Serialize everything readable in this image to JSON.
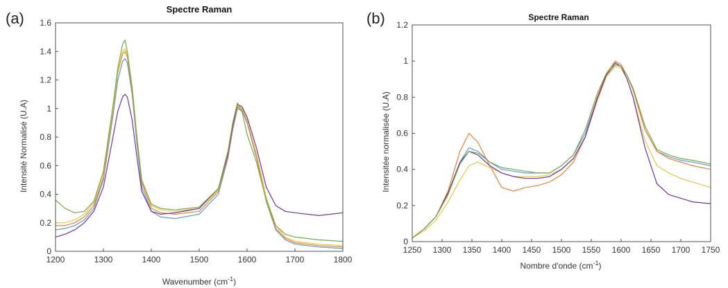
{
  "chart_data": [
    {
      "type": "line",
      "panel_label": "(a)",
      "title": "Spectre Raman",
      "xlabel": "Wavenumber (cm",
      "xlabel_sup": "-1",
      "xlabel_tail": ")",
      "ylabel": "Intensité Normalisé (U.A)",
      "xlim": [
        1200,
        1800
      ],
      "ylim": [
        0,
        1.6
      ],
      "xticks": [
        "1200",
        "1300",
        "1400",
        "1500",
        "1600",
        "1700",
        "1800"
      ],
      "yticks": [
        "0",
        "0.2",
        "0.4",
        "0.6",
        "0.8",
        "1",
        "1.2",
        "1.4",
        "1.6"
      ],
      "grid": false,
      "series": [
        {
          "color": "#5b9bd5",
          "x": [
            1200,
            1220,
            1240,
            1260,
            1280,
            1300,
            1320,
            1330,
            1340,
            1345,
            1350,
            1360,
            1370,
            1380,
            1400,
            1420,
            1450,
            1500,
            1540,
            1560,
            1570,
            1580,
            1590,
            1600,
            1620,
            1640,
            1660,
            1680,
            1700,
            1750,
            1800
          ],
          "y": [
            0.15,
            0.16,
            0.18,
            0.22,
            0.3,
            0.5,
            0.95,
            1.2,
            1.33,
            1.35,
            1.32,
            1.1,
            0.75,
            0.45,
            0.28,
            0.24,
            0.23,
            0.26,
            0.4,
            0.65,
            0.85,
            1.0,
            0.98,
            0.9,
            0.65,
            0.35,
            0.15,
            0.08,
            0.05,
            0.03,
            0.02
          ]
        },
        {
          "color": "#ed7d31",
          "x": [
            1200,
            1220,
            1240,
            1260,
            1280,
            1300,
            1320,
            1330,
            1340,
            1345,
            1350,
            1360,
            1370,
            1380,
            1400,
            1420,
            1450,
            1500,
            1540,
            1560,
            1570,
            1580,
            1590,
            1600,
            1620,
            1640,
            1660,
            1680,
            1700,
            1750,
            1800
          ],
          "y": [
            0.18,
            0.18,
            0.2,
            0.24,
            0.32,
            0.52,
            0.98,
            1.25,
            1.38,
            1.4,
            1.36,
            1.12,
            0.78,
            0.48,
            0.3,
            0.27,
            0.26,
            0.28,
            0.42,
            0.66,
            0.86,
            1.01,
            0.99,
            0.91,
            0.66,
            0.36,
            0.16,
            0.09,
            0.06,
            0.04,
            0.03
          ]
        },
        {
          "color": "#e8c547",
          "x": [
            1200,
            1220,
            1240,
            1260,
            1280,
            1300,
            1320,
            1330,
            1340,
            1345,
            1350,
            1360,
            1370,
            1380,
            1400,
            1420,
            1450,
            1500,
            1540,
            1560,
            1570,
            1580,
            1590,
            1600,
            1620,
            1640,
            1660,
            1680,
            1700,
            1750,
            1800
          ],
          "y": [
            0.2,
            0.2,
            0.22,
            0.26,
            0.34,
            0.55,
            1.0,
            1.26,
            1.4,
            1.42,
            1.38,
            1.15,
            0.8,
            0.5,
            0.32,
            0.29,
            0.28,
            0.3,
            0.43,
            0.68,
            0.88,
            1.02,
            1.0,
            0.92,
            0.68,
            0.38,
            0.18,
            0.1,
            0.07,
            0.05,
            0.04
          ]
        },
        {
          "color": "#7030a0",
          "x": [
            1200,
            1220,
            1240,
            1260,
            1280,
            1300,
            1320,
            1330,
            1340,
            1345,
            1350,
            1360,
            1370,
            1380,
            1400,
            1420,
            1450,
            1500,
            1540,
            1560,
            1570,
            1580,
            1590,
            1600,
            1620,
            1640,
            1660,
            1680,
            1700,
            1750,
            1800
          ],
          "y": [
            0.1,
            0.12,
            0.15,
            0.2,
            0.28,
            0.45,
            0.8,
            0.98,
            1.08,
            1.1,
            1.08,
            0.92,
            0.66,
            0.42,
            0.28,
            0.26,
            0.27,
            0.3,
            0.44,
            0.68,
            0.88,
            1.03,
            1.01,
            0.94,
            0.72,
            0.45,
            0.32,
            0.28,
            0.27,
            0.25,
            0.27
          ]
        },
        {
          "color": "#70ad47",
          "x": [
            1200,
            1220,
            1240,
            1260,
            1280,
            1300,
            1320,
            1330,
            1340,
            1345,
            1350,
            1360,
            1370,
            1380,
            1400,
            1420,
            1450,
            1500,
            1540,
            1560,
            1570,
            1580,
            1590,
            1600,
            1620,
            1640,
            1660,
            1680,
            1700,
            1750,
            1800
          ],
          "y": [
            0.36,
            0.3,
            0.27,
            0.28,
            0.35,
            0.56,
            1.02,
            1.28,
            1.45,
            1.48,
            1.4,
            1.15,
            0.8,
            0.5,
            0.33,
            0.3,
            0.29,
            0.31,
            0.44,
            0.7,
            0.9,
            1.04,
            0.97,
            0.82,
            0.62,
            0.36,
            0.18,
            0.12,
            0.1,
            0.08,
            0.07
          ]
        }
      ]
    },
    {
      "type": "line",
      "panel_label": "(b)",
      "title": "Spectre Raman",
      "xlabel": "Nombre d'onde (cm",
      "xlabel_sup": "-1",
      "xlabel_tail": ")",
      "ylabel": "Intensitée normalisée (U.A)",
      "xlim": [
        1250,
        1750
      ],
      "ylim": [
        0,
        1.2
      ],
      "xticks": [
        "1250",
        "1300",
        "1350",
        "1400",
        "1450",
        "1500",
        "1550",
        "1600",
        "1650",
        "1700",
        "1750"
      ],
      "yticks": [
        "0",
        "0.2",
        "0.4",
        "0.6",
        "0.8",
        "1",
        "1.2"
      ],
      "grid": false,
      "series": [
        {
          "color": "#5b9bd5",
          "x": [
            1250,
            1270,
            1290,
            1310,
            1330,
            1345,
            1360,
            1380,
            1400,
            1420,
            1440,
            1460,
            1480,
            1500,
            1520,
            1540,
            1560,
            1575,
            1590,
            1600,
            1610,
            1620,
            1640,
            1660,
            1680,
            1700,
            1720,
            1750
          ],
          "y": [
            0.02,
            0.07,
            0.14,
            0.26,
            0.44,
            0.52,
            0.5,
            0.44,
            0.4,
            0.39,
            0.38,
            0.38,
            0.38,
            0.42,
            0.48,
            0.6,
            0.8,
            0.92,
            0.98,
            0.97,
            0.92,
            0.84,
            0.62,
            0.5,
            0.47,
            0.45,
            0.44,
            0.42
          ]
        },
        {
          "color": "#ed7d31",
          "x": [
            1250,
            1270,
            1290,
            1310,
            1330,
            1345,
            1360,
            1380,
            1400,
            1420,
            1440,
            1460,
            1480,
            1500,
            1520,
            1540,
            1560,
            1575,
            1590,
            1600,
            1610,
            1620,
            1640,
            1660,
            1680,
            1700,
            1720,
            1750
          ],
          "y": [
            0.02,
            0.07,
            0.14,
            0.28,
            0.5,
            0.6,
            0.55,
            0.42,
            0.3,
            0.28,
            0.3,
            0.31,
            0.33,
            0.37,
            0.44,
            0.58,
            0.8,
            0.93,
            1.0,
            0.98,
            0.92,
            0.84,
            0.62,
            0.5,
            0.46,
            0.44,
            0.42,
            0.4
          ]
        },
        {
          "color": "#e8c547",
          "x": [
            1250,
            1270,
            1290,
            1310,
            1330,
            1345,
            1360,
            1380,
            1400,
            1420,
            1440,
            1460,
            1480,
            1500,
            1520,
            1540,
            1560,
            1575,
            1590,
            1600,
            1610,
            1620,
            1640,
            1660,
            1680,
            1700,
            1720,
            1750
          ],
          "y": [
            0.02,
            0.06,
            0.12,
            0.22,
            0.34,
            0.42,
            0.44,
            0.41,
            0.38,
            0.36,
            0.36,
            0.36,
            0.37,
            0.4,
            0.46,
            0.58,
            0.78,
            0.91,
            0.97,
            0.96,
            0.9,
            0.8,
            0.56,
            0.42,
            0.38,
            0.35,
            0.33,
            0.3
          ]
        },
        {
          "color": "#7030a0",
          "x": [
            1250,
            1270,
            1290,
            1310,
            1330,
            1345,
            1360,
            1380,
            1400,
            1420,
            1440,
            1460,
            1480,
            1500,
            1520,
            1540,
            1560,
            1575,
            1590,
            1600,
            1610,
            1620,
            1640,
            1660,
            1680,
            1700,
            1720,
            1750
          ],
          "y": [
            0.02,
            0.07,
            0.14,
            0.27,
            0.44,
            0.5,
            0.48,
            0.42,
            0.38,
            0.36,
            0.35,
            0.35,
            0.36,
            0.4,
            0.46,
            0.58,
            0.79,
            0.92,
            0.99,
            0.97,
            0.9,
            0.8,
            0.52,
            0.32,
            0.26,
            0.24,
            0.22,
            0.21
          ]
        },
        {
          "color": "#70ad47",
          "x": [
            1250,
            1270,
            1290,
            1310,
            1330,
            1345,
            1360,
            1380,
            1400,
            1420,
            1440,
            1460,
            1480,
            1500,
            1520,
            1540,
            1560,
            1575,
            1590,
            1600,
            1610,
            1620,
            1640,
            1660,
            1680,
            1700,
            1720,
            1750
          ],
          "y": [
            0.02,
            0.07,
            0.14,
            0.26,
            0.43,
            0.5,
            0.49,
            0.44,
            0.41,
            0.4,
            0.39,
            0.38,
            0.38,
            0.42,
            0.48,
            0.62,
            0.82,
            0.93,
            0.98,
            0.97,
            0.92,
            0.85,
            0.64,
            0.51,
            0.48,
            0.46,
            0.45,
            0.43
          ]
        }
      ]
    }
  ]
}
